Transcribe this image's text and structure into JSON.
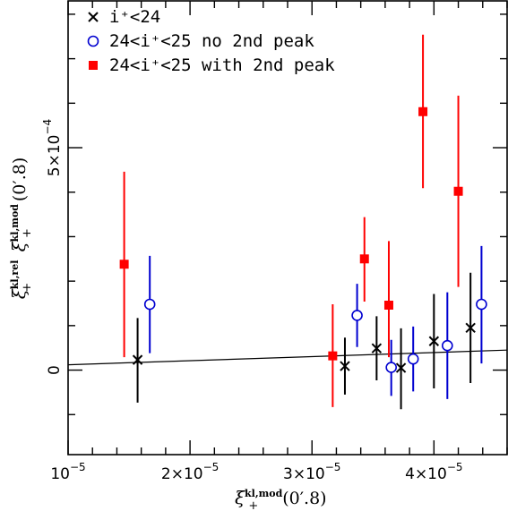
{
  "chart_data": {
    "type": "scatter",
    "xlabel_parts": {
      "main": "ξ",
      "sup": "kl,mod",
      "sub": "+",
      "arg": "(0.8)",
      "arg_display": "(0′.8)"
    },
    "ylabel_parts": {
      "main1": "ξ",
      "sup1": "kl,rel",
      "sub1": "+",
      "main2": "ξ",
      "sup2": "kl,mod",
      "sub2": "+",
      "arg": "(0.8)",
      "arg_display": "(0′.8)"
    },
    "xlim": [
      1e-05,
      4.6e-05
    ],
    "ylim": [
      -0.00019,
      0.00083
    ],
    "x_ticks": [
      {
        "value": 1e-05,
        "base": "10",
        "exp": "−5"
      },
      {
        "value": 2e-05,
        "base": "2×10",
        "exp": "−5"
      },
      {
        "value": 3e-05,
        "base": "3×10",
        "exp": "−5"
      },
      {
        "value": 4e-05,
        "base": "4×10",
        "exp": "−5"
      }
    ],
    "y_ticks": [
      {
        "value": 0,
        "base": "0",
        "exp": ""
      },
      {
        "value": 0.0005,
        "base": "5×10",
        "exp": "−4"
      }
    ],
    "legend": {
      "placement": "top-left",
      "entries": [
        {
          "series": 0,
          "label": "i⁺<24"
        },
        {
          "series": 1,
          "label": "24<i⁺<25 no 2nd peak"
        },
        {
          "series": 2,
          "label": "24<i⁺<25 with 2nd peak"
        }
      ]
    },
    "series": [
      {
        "name": "i⁺<24",
        "marker": "cross",
        "color": "#000000",
        "points": [
          {
            "x": 1.57e-05,
            "y": 2.3e-05,
            "ylo": -7.3e-05,
            "yhi": 0.000117
          },
          {
            "x": 3.27e-05,
            "y": 9e-06,
            "ylo": -5.5e-05,
            "yhi": 7.3e-05
          },
          {
            "x": 3.53e-05,
            "y": 4.9e-05,
            "ylo": -2.3e-05,
            "yhi": 0.000121
          },
          {
            "x": 3.73e-05,
            "y": 5e-06,
            "ylo": -8.8e-05,
            "yhi": 9.4e-05
          },
          {
            "x": 4e-05,
            "y": 6.5e-05,
            "ylo": -4.1e-05,
            "yhi": 0.000171
          },
          {
            "x": 4.3e-05,
            "y": 9.5e-05,
            "ylo": -2.9e-05,
            "yhi": 0.000219
          }
        ]
      },
      {
        "name": "24<i⁺<25 no 2nd peak",
        "marker": "circle",
        "color": "#0000d0",
        "points": [
          {
            "x": 1.67e-05,
            "y": 0.000148,
            "ylo": 3.8e-05,
            "yhi": 0.000257
          },
          {
            "x": 3.37e-05,
            "y": 0.000123,
            "ylo": 5.2e-05,
            "yhi": 0.000194
          },
          {
            "x": 3.65e-05,
            "y": 6e-06,
            "ylo": -5.8e-05,
            "yhi": 6.8e-05
          },
          {
            "x": 3.83e-05,
            "y": 2.5e-05,
            "ylo": -4.8e-05,
            "yhi": 9.8e-05
          },
          {
            "x": 4.11e-05,
            "y": 5.5e-05,
            "ylo": -6.5e-05,
            "yhi": 0.000175
          },
          {
            "x": 4.39e-05,
            "y": 0.000148,
            "ylo": 1.5e-05,
            "yhi": 0.000279
          }
        ]
      },
      {
        "name": "24<i⁺<25 with 2nd peak",
        "marker": "square",
        "color": "#ff0000",
        "points": [
          {
            "x": 1.46e-05,
            "y": 0.000238,
            "ylo": 2.9e-05,
            "yhi": 0.000446
          },
          {
            "x": 3.17e-05,
            "y": 3.2e-05,
            "ylo": -8.3e-05,
            "yhi": 0.000148
          },
          {
            "x": 3.43e-05,
            "y": 0.00025,
            "ylo": 0.000154,
            "yhi": 0.000344
          },
          {
            "x": 3.63e-05,
            "y": 0.000146,
            "ylo": 2.9e-05,
            "yhi": 0.00029
          },
          {
            "x": 3.91e-05,
            "y": 0.000581,
            "ylo": 0.000409,
            "yhi": 0.000754
          },
          {
            "x": 4.2e-05,
            "y": 0.000402,
            "ylo": 0.000187,
            "yhi": 0.000617
          }
        ]
      }
    ],
    "fit_line": {
      "color": "#000000",
      "points": [
        {
          "x": 1e-05,
          "y": 1.2e-05
        },
        {
          "x": 4.6e-05,
          "y": 4.5e-05
        }
      ]
    }
  }
}
